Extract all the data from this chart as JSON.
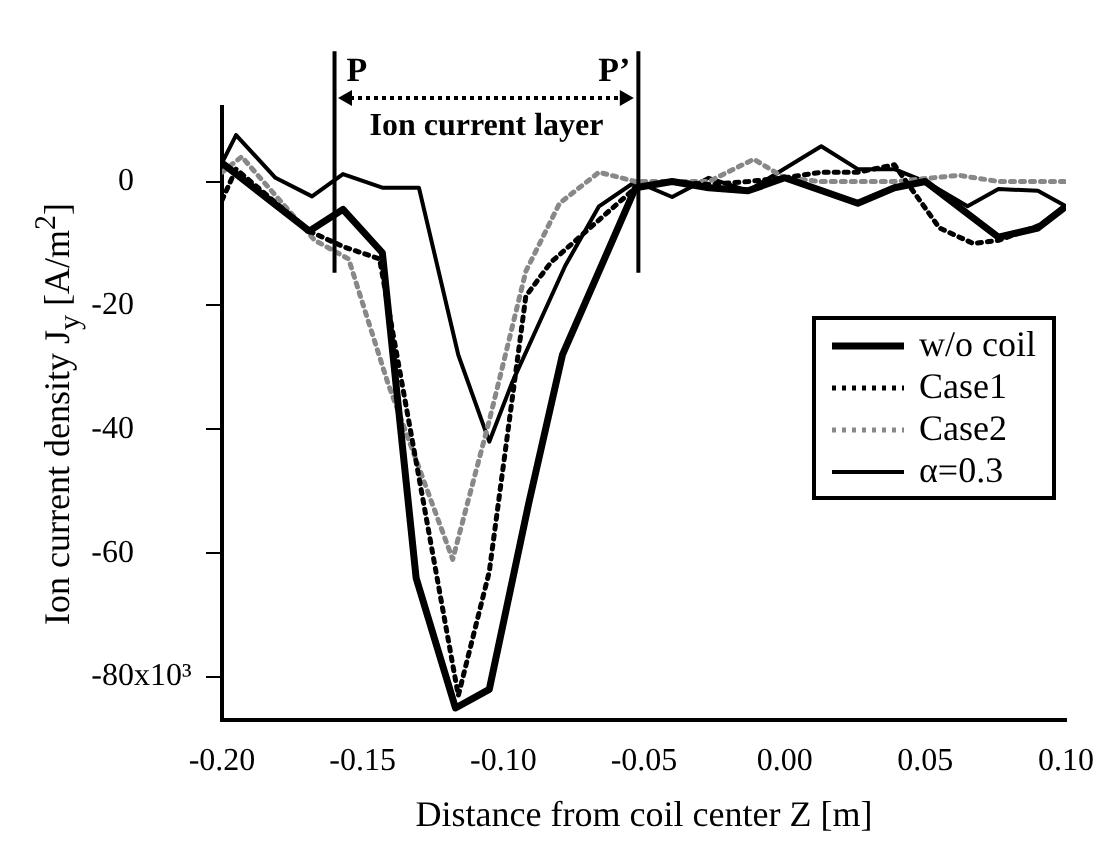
{
  "chart_data": {
    "type": "line",
    "xlabel": "Distance from coil center Z [m]",
    "ylabel": "Ion current density J$_{y}$ [A/m$^{2}$]",
    "xlim": [
      -0.2,
      0.1
    ],
    "ylim": [
      -87,
      12
    ],
    "xticks": [
      {
        "value": -0.2,
        "label": "-0.20"
      },
      -0.15,
      {
        "value": -0.1,
        "label": "-0.10"
      },
      -0.05,
      {
        "value": 0,
        "label": "0.00"
      },
      0.05,
      {
        "value": 0.1,
        "label": "0.10"
      }
    ],
    "yticks": [
      -80,
      -60,
      -40,
      -20,
      0
    ],
    "grid": false,
    "legend": "right",
    "marker": "none",
    "ref_lines": [
      {
        "axis": "x",
        "value": -0.16,
        "label": "P"
      },
      {
        "axis": "x",
        "value": -0.052,
        "label": "P’"
      }
    ],
    "annotations": [
      "Ion current layer",
      "x10³"
    ],
    "series": [
      {
        "name": "w/o coil",
        "color": "#000000",
        "line_style": "solid",
        "x": [
          -0.2,
          -0.169,
          -0.157,
          -0.143,
          -0.131,
          -0.117,
          -0.105,
          -0.091,
          -0.079,
          -0.053,
          -0.04,
          -0.027,
          -0.013,
          0.0,
          0.026,
          0.039,
          0.05,
          0.076,
          0.09,
          0.1
        ],
        "values": [
          3,
          -8,
          -4.5,
          -11.5,
          -64,
          -85,
          -82,
          -52,
          -28,
          -1,
          0,
          -1,
          -1.5,
          0.6,
          -3.5,
          -1,
          0,
          -9,
          -7.5,
          -4
        ]
      },
      {
        "name": "Case1",
        "color": "#000000",
        "line_style": "dotted",
        "x": [
          -0.2,
          -0.195,
          -0.169,
          -0.157,
          -0.144,
          -0.116,
          -0.105,
          -0.092,
          -0.083,
          -0.053,
          -0.04,
          -0.027,
          -0.013,
          0.0,
          0.013,
          0.026,
          0.039,
          0.047,
          0.055,
          0.067,
          0.076,
          0.091,
          0.1
        ],
        "values": [
          -3,
          2,
          -8,
          -10.5,
          -12.5,
          -83,
          -63,
          -18.5,
          -13,
          -1,
          0,
          -0.5,
          0,
          0.6,
          1.5,
          1.5,
          2.7,
          -2.4,
          -7.5,
          -10,
          -9.5,
          -7,
          -4
        ]
      },
      {
        "name": "Case2",
        "color": "#888888",
        "line_style": "dotted",
        "x": [
          -0.2,
          -0.193,
          -0.167,
          -0.155,
          -0.141,
          -0.118,
          -0.105,
          -0.092,
          -0.08,
          -0.066,
          -0.053,
          -0.04,
          -0.027,
          -0.011,
          0.0,
          0.013,
          0.026,
          0.039,
          0.062,
          0.076,
          0.1
        ],
        "values": [
          1.5,
          4,
          -9.5,
          -12.5,
          -32.6,
          -61,
          -38.6,
          -14.5,
          -3.5,
          1.5,
          0,
          0,
          0,
          3.6,
          0.6,
          0,
          0,
          0,
          1,
          0,
          0
        ]
      },
      {
        "name": "α=0.3",
        "color": "#000000",
        "line_style": "solid",
        "x": [
          -0.2,
          -0.195,
          -0.181,
          -0.168,
          -0.157,
          -0.143,
          -0.13,
          -0.116,
          -0.105,
          -0.097,
          -0.078,
          -0.066,
          -0.053,
          -0.04,
          -0.027,
          -0.013,
          0.013,
          0.026,
          0.039,
          0.05,
          0.065,
          0.076,
          0.09,
          0.1
        ],
        "values": [
          3,
          7.5,
          0.6,
          -2.4,
          1.2,
          -1,
          -1,
          -28,
          -42,
          -32.6,
          -13.6,
          -4,
          0,
          -2.5,
          0.6,
          -1.5,
          5.7,
          2,
          2,
          0,
          -4,
          -1.2,
          -1.5,
          -4
        ]
      }
    ]
  }
}
